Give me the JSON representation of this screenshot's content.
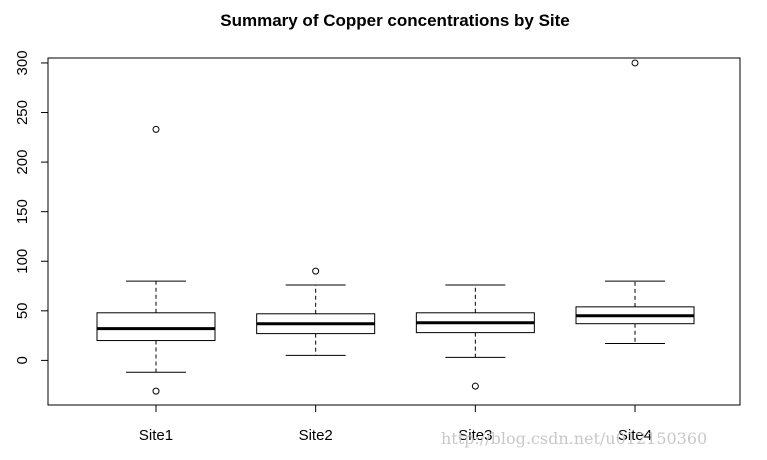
{
  "chart_data": {
    "type": "boxplot",
    "title": "Summary of Copper concentrations by Site",
    "xlabel": "",
    "ylabel": "",
    "ylim": [
      -45,
      305
    ],
    "yticks": [
      0,
      50,
      100,
      150,
      200,
      250,
      300
    ],
    "categories": [
      "Site1",
      "Site2",
      "Site3",
      "Site4"
    ],
    "boxes": [
      {
        "name": "Site1",
        "whisker_low": -12,
        "q1": 20,
        "median": 32,
        "q3": 48,
        "whisker_high": 80,
        "outliers": [
          233,
          -31
        ]
      },
      {
        "name": "Site2",
        "whisker_low": 5,
        "q1": 27,
        "median": 37,
        "q3": 47,
        "whisker_high": 76,
        "outliers": [
          90
        ]
      },
      {
        "name": "Site3",
        "whisker_low": 3,
        "q1": 28,
        "median": 38,
        "q3": 48,
        "whisker_high": 76,
        "outliers": [
          -26
        ]
      },
      {
        "name": "Site4",
        "whisker_low": 17,
        "q1": 37,
        "median": 45,
        "q3": 54,
        "whisker_high": 80,
        "outliers": [
          300
        ]
      }
    ],
    "grid": false,
    "legend": "none"
  },
  "watermark": "http://blog.csdn.net/u012150360"
}
